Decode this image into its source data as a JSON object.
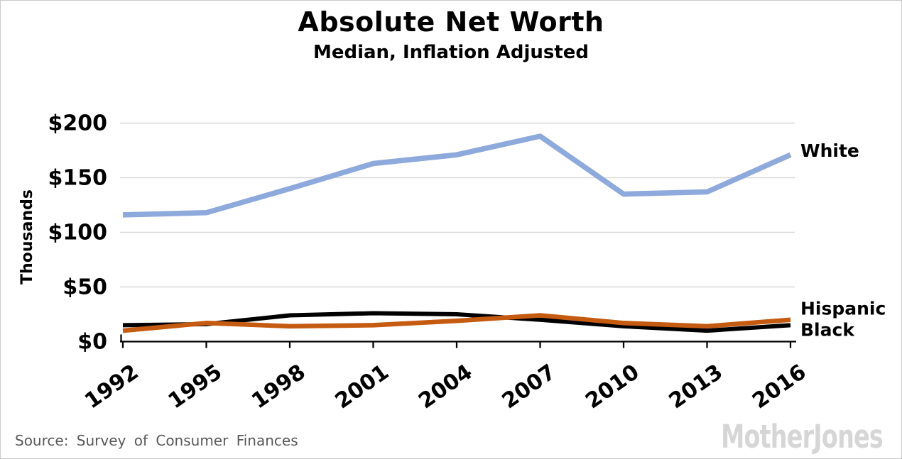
{
  "header": {
    "title": "Absolute Net Worth",
    "subtitle": "Median, Inflation Adjusted"
  },
  "footer": {
    "source": "Source: Survey of Consumer Finances",
    "brand": "MotherJones"
  },
  "chart_data": {
    "type": "line",
    "title": "Absolute Net Worth",
    "subtitle": "Median, Inflation Adjusted",
    "x": [
      1992,
      1995,
      1998,
      2001,
      2004,
      2007,
      2010,
      2013,
      2016
    ],
    "series": [
      {
        "name": "White",
        "color": "#8EA9DB",
        "values": [
          116,
          118,
          140,
          163,
          171,
          188,
          135,
          137,
          171
        ],
        "stroke_width": 7.5,
        "label_dy": -5
      },
      {
        "name": "Black",
        "color": "#000000",
        "values": [
          15,
          16,
          24,
          26,
          25,
          20,
          14,
          10,
          15
        ],
        "stroke_width": 6,
        "label_dy": 7
      },
      {
        "name": "Hispanic",
        "color": "#C55A11",
        "values": [
          10,
          17,
          14,
          15,
          19,
          24,
          17,
          14,
          20
        ],
        "stroke_width": 6.5,
        "label_dy": -15
      }
    ],
    "ylabel": "Thousands",
    "xlabel": "",
    "y_ticks": [
      0,
      50,
      100,
      150,
      200
    ],
    "y_tick_labels": [
      "$0",
      "$50",
      "$100",
      "$150",
      "$200"
    ],
    "ylim": [
      0,
      210
    ],
    "grid": true,
    "grid_color": "#d9d9d9",
    "axis_color": "#000000",
    "legend_position": "right-end-labels"
  }
}
